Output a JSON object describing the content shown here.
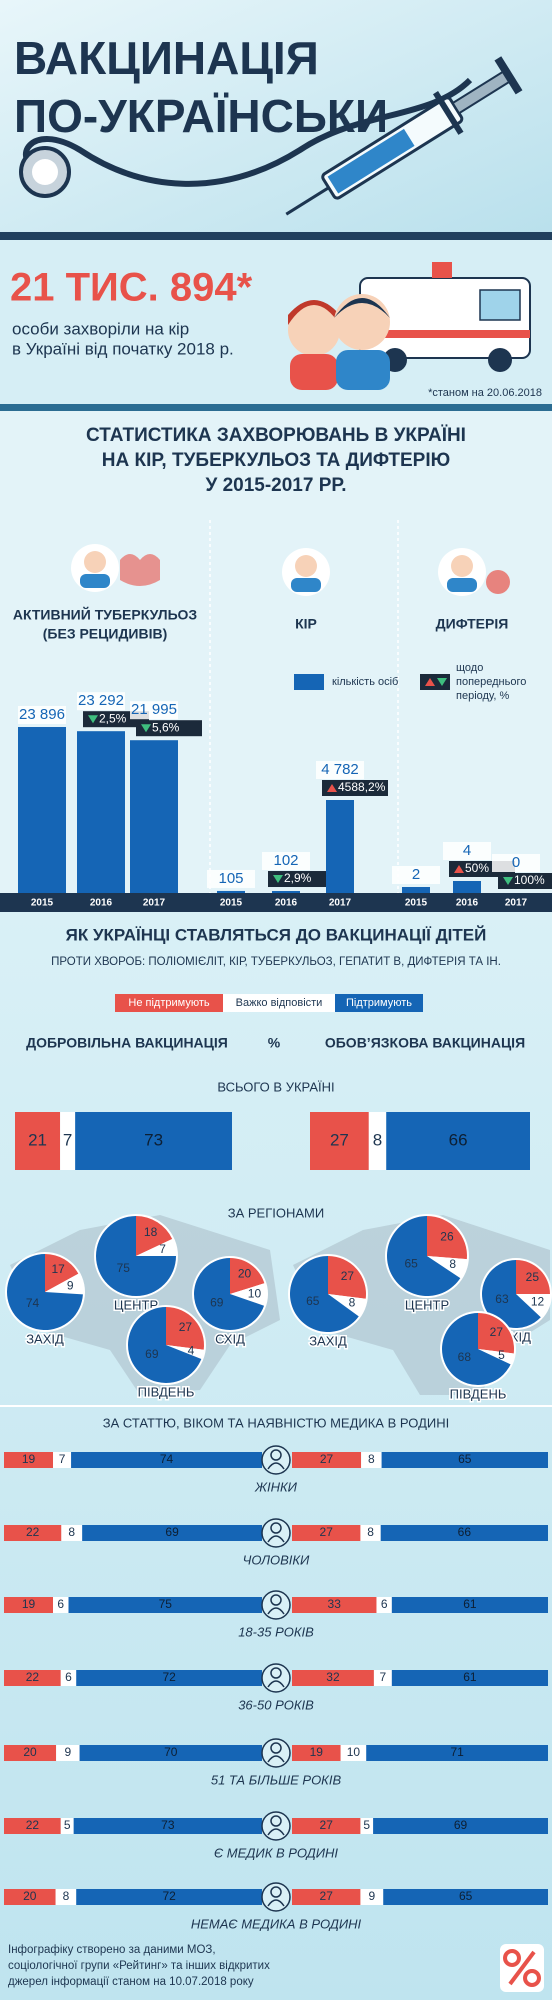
{
  "header": {
    "title_lines": [
      "ВАКЦИНАЦІЯ",
      "ПО-УКРАЇНСЬКИ"
    ]
  },
  "measles_2018": {
    "headline": "21 ТИС. 894*",
    "text_lines": [
      "особи захворіли на кір",
      "в Україні від початку 2018 р."
    ],
    "note": "*станом на 20.06.2018"
  },
  "chart_data": [
    {
      "type": "bar",
      "title": [
        "СТАТИСТИКА ЗАХВОРЮВАНЬ В УКРАЇНІ",
        "НА КІР, ТУБЕРКУЛЬОЗ ТА ДИФТЕРІЮ",
        "У 2015-2017 РР."
      ],
      "color": "#1565b5",
      "legend": {
        "count": "кількість осіб",
        "change": [
          "щодо",
          "попереднього",
          "періоду, %"
        ]
      },
      "groups": [
        {
          "name": [
            "АКТИВНИЙ ТУБЕРКУЛЬОЗ",
            "(БЕЗ РЕЦИДИВІВ)"
          ],
          "categories": [
            "2015",
            "2016",
            "2017"
          ],
          "values": [
            23896,
            23292,
            21995
          ],
          "value_labels": [
            "23 896",
            "23 292",
            "21 995"
          ],
          "changes": [
            null,
            -2.5,
            -5.6
          ],
          "change_labels": [
            null,
            "2,5%",
            "5,6%"
          ]
        },
        {
          "name": [
            "КІР"
          ],
          "categories": [
            "2015",
            "2016",
            "2017"
          ],
          "values": [
            105,
            102,
            4782
          ],
          "value_labels": [
            "105",
            "102",
            "4 782"
          ],
          "changes": [
            null,
            -2.9,
            4588.2
          ],
          "change_labels": [
            null,
            "2,9%",
            "4588,2%"
          ]
        },
        {
          "name": [
            "ДИФТЕРІЯ"
          ],
          "categories": [
            "2015",
            "2016",
            "2017"
          ],
          "values": [
            2,
            4,
            0
          ],
          "value_labels": [
            "2",
            "4",
            "0"
          ],
          "changes": [
            null,
            50,
            -100
          ],
          "change_labels": [
            null,
            "50%",
            "100%"
          ]
        }
      ]
    }
  ],
  "attitudes": {
    "type": "stacked-bar",
    "title": "ЯК УКРАЇНЦІ СТАВЛЯТЬСЯ ДО ВАКЦИНАЦІЇ ДІТЕЙ",
    "subtitle": "ПРОТИ ХВОРОБ: ПОЛІОМІЄЛІТ, КІР, ТУБЕРКУЛЬОЗ, ГЕПАТИТ B, ДИФТЕРІЯ ТА ІН.",
    "legend": [
      "Не підтримують",
      "Важко відповісти",
      "Підтримують"
    ],
    "colors": [
      "#e8524a",
      "#ffffff",
      "#1565b5"
    ],
    "columns": [
      "ДОБРОВІЛЬНА ВАКЦИНАЦІЯ",
      "%",
      "ОБОВ’ЯЗКОВА ВАКЦИНАЦІЯ"
    ],
    "total": {
      "label": "ВСЬОГО В УКРАЇНІ",
      "voluntary": [
        21,
        7,
        73
      ],
      "mandatory": [
        27,
        8,
        66
      ]
    },
    "regions": {
      "label": "ЗА РЕГІОНАМИ",
      "items": [
        {
          "name": "ЗАХІД",
          "voluntary": [
            17,
            9,
            74
          ],
          "mandatory": [
            27,
            8,
            65
          ]
        },
        {
          "name": "ЦЕНТР",
          "voluntary": [
            18,
            7,
            75
          ],
          "mandatory": [
            26,
            8,
            65
          ]
        },
        {
          "name": "СХІД",
          "voluntary": [
            20,
            10,
            69
          ],
          "mandatory": [
            25,
            12,
            63
          ]
        },
        {
          "name": "ПІВДЕНЬ",
          "voluntary": [
            27,
            4,
            69
          ],
          "mandatory": [
            27,
            5,
            68
          ]
        }
      ]
    },
    "groups": {
      "label": "ЗА СТАТТЮ, ВІКОМ ТА НАЯВНІСТЮ МЕДИКА В РОДИНІ",
      "items": [
        {
          "name": "ЖІНКИ",
          "voluntary": [
            19,
            7,
            74
          ],
          "mandatory": [
            27,
            8,
            65
          ]
        },
        {
          "name": "ЧОЛОВІКИ",
          "voluntary": [
            22,
            8,
            69
          ],
          "mandatory": [
            27,
            8,
            66
          ]
        },
        {
          "name": "18-35 РОКІВ",
          "voluntary": [
            19,
            6,
            75
          ],
          "mandatory": [
            33,
            6,
            61
          ]
        },
        {
          "name": "36-50 РОКІВ",
          "voluntary": [
            22,
            6,
            72
          ],
          "mandatory": [
            32,
            7,
            61
          ]
        },
        {
          "name": "51 ТА БІЛЬШЕ РОКІВ",
          "voluntary": [
            20,
            9,
            70
          ],
          "mandatory": [
            19,
            10,
            71
          ]
        },
        {
          "name": "Є МЕДИК В РОДИНІ",
          "voluntary": [
            22,
            5,
            73
          ],
          "mandatory": [
            27,
            5,
            69
          ]
        },
        {
          "name": "НЕМАЄ МЕДИКА В РОДИНІ",
          "voluntary": [
            20,
            8,
            72
          ],
          "mandatory": [
            27,
            9,
            65
          ]
        }
      ]
    }
  },
  "footer": [
    "Інфографіку створено за даними МОЗ,",
    "соціологічної групи «Рейтинг» та інших відкритих",
    "джерел інформації станом на 10.07.2018 року"
  ]
}
